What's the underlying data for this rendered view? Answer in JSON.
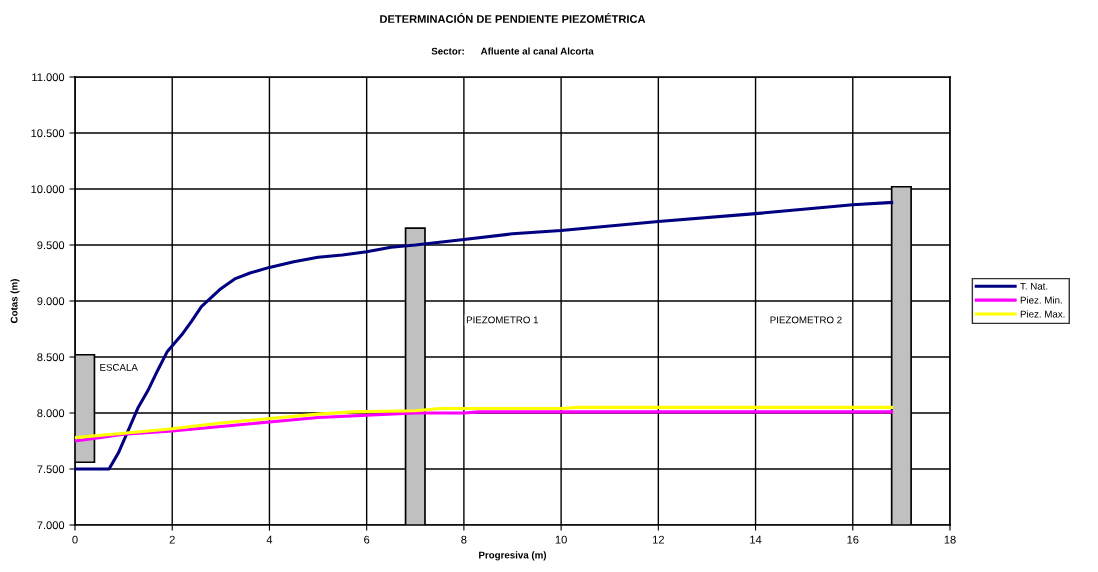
{
  "chart_data": {
    "type": "line",
    "title": "DETERMINACIÓN DE PENDIENTE PIEZOMÉTRICA",
    "subtitle": "Sector:      Afluente al canal Alcorta",
    "xlabel": "Progresiva (m)",
    "ylabel": "Cotas (m)",
    "series": [
      {
        "type": "bar",
        "color": "#c0c0c0",
        "x": [
          0.2,
          7.0,
          17.0
        ],
        "base": [
          7560,
          7000,
          7000
        ],
        "values": [
          960,
          2650,
          3020
        ]
      },
      {
        "name": "T. Nat.",
        "color": "#000080",
        "x": [
          0,
          0.7,
          0.9,
          1.1,
          1.3,
          1.5,
          1.7,
          1.9,
          2.2,
          2.4,
          2.6,
          2.8,
          3.0,
          3.3,
          3.6,
          4.0,
          4.5,
          5.0,
          5.5,
          6.0,
          6.5,
          7.0,
          8,
          9,
          10,
          10.5,
          12,
          14,
          16,
          16.8
        ],
        "values": [
          7500,
          7500,
          7650,
          7850,
          8050,
          8200,
          8380,
          8550,
          8700,
          8820,
          8950,
          9030,
          9110,
          9200,
          9250,
          9300,
          9350,
          9390,
          9410,
          9440,
          9480,
          9500,
          9550,
          9600,
          9630,
          9650,
          9710,
          9780,
          9860,
          9880
        ]
      },
      {
        "name": "Piez. Min.",
        "color": "#ff00ff",
        "x": [
          0,
          0.5,
          1,
          2,
          3,
          4,
          5,
          6,
          7,
          8,
          8.3,
          16.8
        ],
        "values": [
          7750,
          7780,
          7810,
          7840,
          7880,
          7920,
          7960,
          7980,
          8000,
          8000,
          8010,
          8010
        ]
      },
      {
        "name": "Piez. Max.",
        "color": "#ffff00",
        "x": [
          0,
          1,
          2,
          3,
          4,
          5,
          5.7,
          7,
          7.5,
          10,
          10.3,
          16.8
        ],
        "values": [
          7780,
          7820,
          7860,
          7910,
          7950,
          7990,
          8010,
          8020,
          8040,
          8040,
          8050,
          8050
        ]
      }
    ],
    "annotations": [
      "ESCALA",
      "PIEZOMETRO 1",
      "PIEZOMETRO 2"
    ],
    "xlim": [
      0,
      18
    ],
    "xticks": [
      0,
      2,
      4,
      6,
      8,
      10,
      12,
      14,
      16,
      18
    ],
    "ylim": [
      7000,
      11000
    ],
    "yticks": [
      {
        "value": 7000,
        "label": "7.000"
      },
      {
        "value": 7500,
        "label": "7.500"
      },
      {
        "value": 8000,
        "label": "8.000"
      },
      {
        "value": 8500,
        "label": "8.500"
      },
      {
        "value": 9000,
        "label": "9.000"
      },
      {
        "value": 9500,
        "label": "9.500"
      },
      {
        "value": 10000,
        "label": "10.000"
      },
      {
        "value": 10500,
        "label": "10.500"
      },
      {
        "value": 11000,
        "label": "11.000"
      }
    ],
    "grid": true,
    "legend": "right",
    "marker": "none",
    "line_style": "solid"
  }
}
